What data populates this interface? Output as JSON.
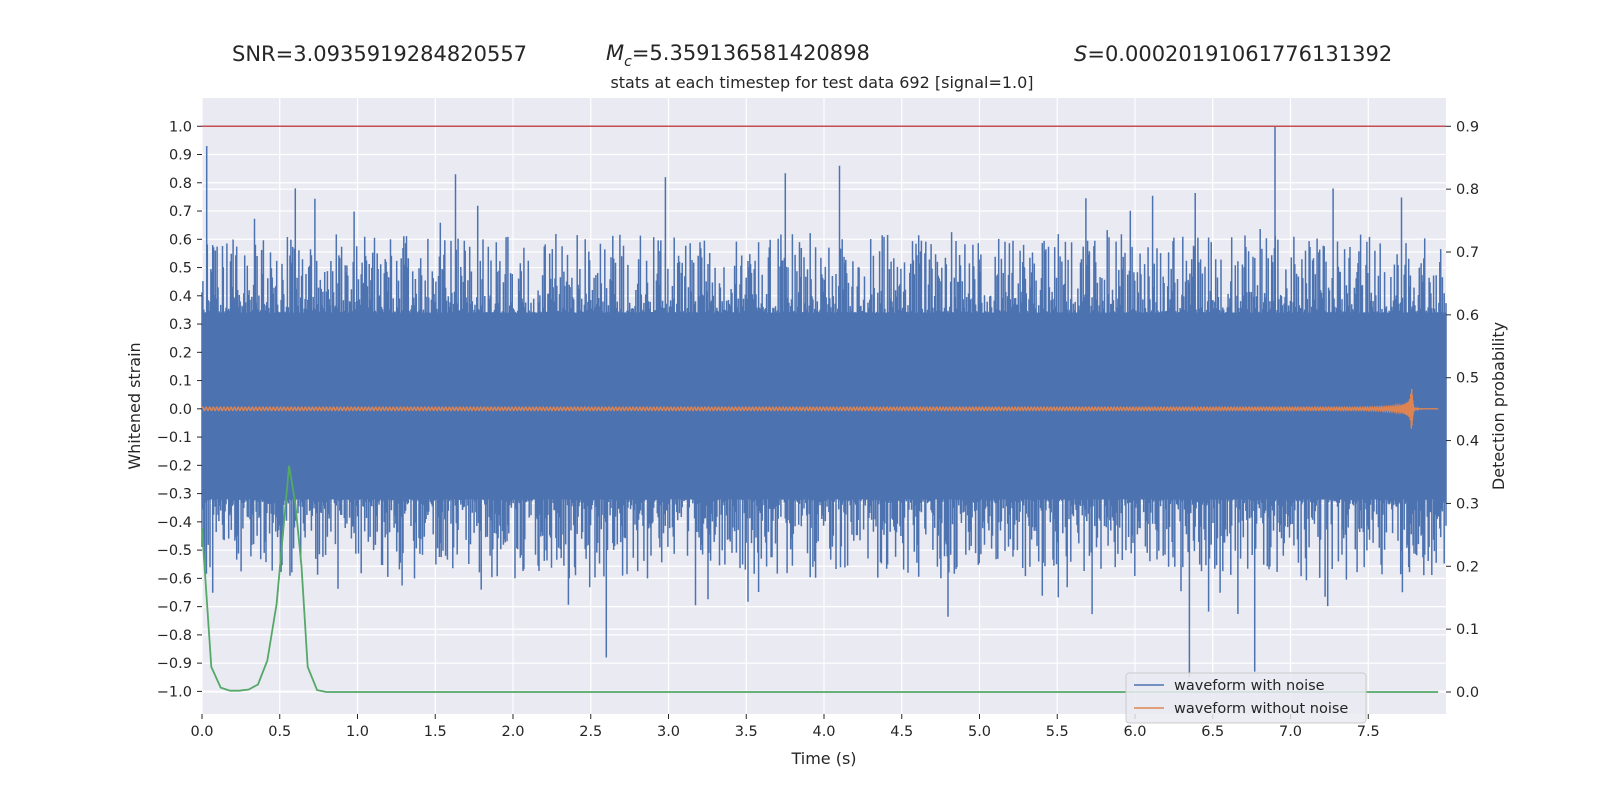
{
  "header": {
    "snr_text": "SNR=3.0935919284820557",
    "mc_symbol": "M",
    "mc_subscript": "c",
    "mc_value": "=5.359136581420898",
    "s_symbol": "S",
    "s_value": "=0.00020191061776131392"
  },
  "chart_data": {
    "type": "line",
    "title": "stats at each timestep for test data 692 [signal=1.0]",
    "xlabel": "Time (s)",
    "ylabel": "Whitened strain",
    "y2label": "Detection probability",
    "xlim": [
      0.0,
      8.0
    ],
    "ylim": [
      -1.08,
      1.1
    ],
    "y2lim": [
      -0.035,
      0.945
    ],
    "x_ticks": [
      "0.0",
      "0.5",
      "1.0",
      "1.5",
      "2.0",
      "2.5",
      "3.0",
      "3.5",
      "4.0",
      "4.5",
      "5.0",
      "5.5",
      "6.0",
      "6.5",
      "7.0",
      "7.5"
    ],
    "y_ticks": [
      "1.0",
      "0.9",
      "0.8",
      "0.7",
      "0.6",
      "0.5",
      "0.4",
      "0.3",
      "0.2",
      "0.1",
      "0.0",
      "−0.1",
      "−0.2",
      "−0.3",
      "−0.4",
      "−0.5",
      "−0.6",
      "−0.7",
      "−0.8",
      "−0.9",
      "−1.0"
    ],
    "y2_ticks": [
      "0.9",
      "0.8",
      "0.7",
      "0.6",
      "0.5",
      "0.4",
      "0.3",
      "0.2",
      "0.1",
      "0.0"
    ],
    "grid": true,
    "legend_position": "bottom-right",
    "threshold_line": {
      "y": 1.0,
      "color": "#c44e52"
    },
    "series": [
      {
        "name": "waveform with noise",
        "color": "#4c72b0",
        "duration_s": 8.0,
        "envelope": {
          "core_top": 0.34,
          "core_bottom": -0.32,
          "spike_max": 1.0,
          "spike_min": -0.96
        },
        "peaks": [
          [
            0.03,
            0.93
          ],
          [
            0.6,
            0.78
          ],
          [
            1.63,
            0.83
          ],
          [
            2.98,
            0.82
          ],
          [
            4.1,
            0.86
          ],
          [
            6.9,
            1.0
          ],
          [
            6.35,
            -0.95
          ],
          [
            6.77,
            -0.93
          ],
          [
            2.6,
            -0.88
          ]
        ]
      },
      {
        "name": "waveform without noise",
        "color": "#dd8452",
        "x_start": 0.0,
        "x_end": 7.95,
        "merger_time": 7.78,
        "peak_amplitude": 0.07,
        "initial_amplitude": 0.006
      },
      {
        "name": "",
        "axis": "right",
        "color": "#55a868",
        "x": [
          0.0,
          0.06,
          0.12,
          0.18,
          0.24,
          0.3,
          0.36,
          0.42,
          0.48,
          0.56,
          0.6,
          0.64,
          0.68,
          0.74,
          0.8,
          1.0,
          2.0,
          3.0,
          4.0,
          5.0,
          6.0,
          7.0,
          7.95
        ],
        "y": [
          0.26,
          0.04,
          0.007,
          0.002,
          0.002,
          0.004,
          0.012,
          0.05,
          0.14,
          0.36,
          0.3,
          0.2,
          0.04,
          0.003,
          0.0,
          0.0,
          0.0,
          0.0,
          0.0,
          0.0,
          0.0,
          0.0,
          0.0
        ]
      }
    ]
  }
}
